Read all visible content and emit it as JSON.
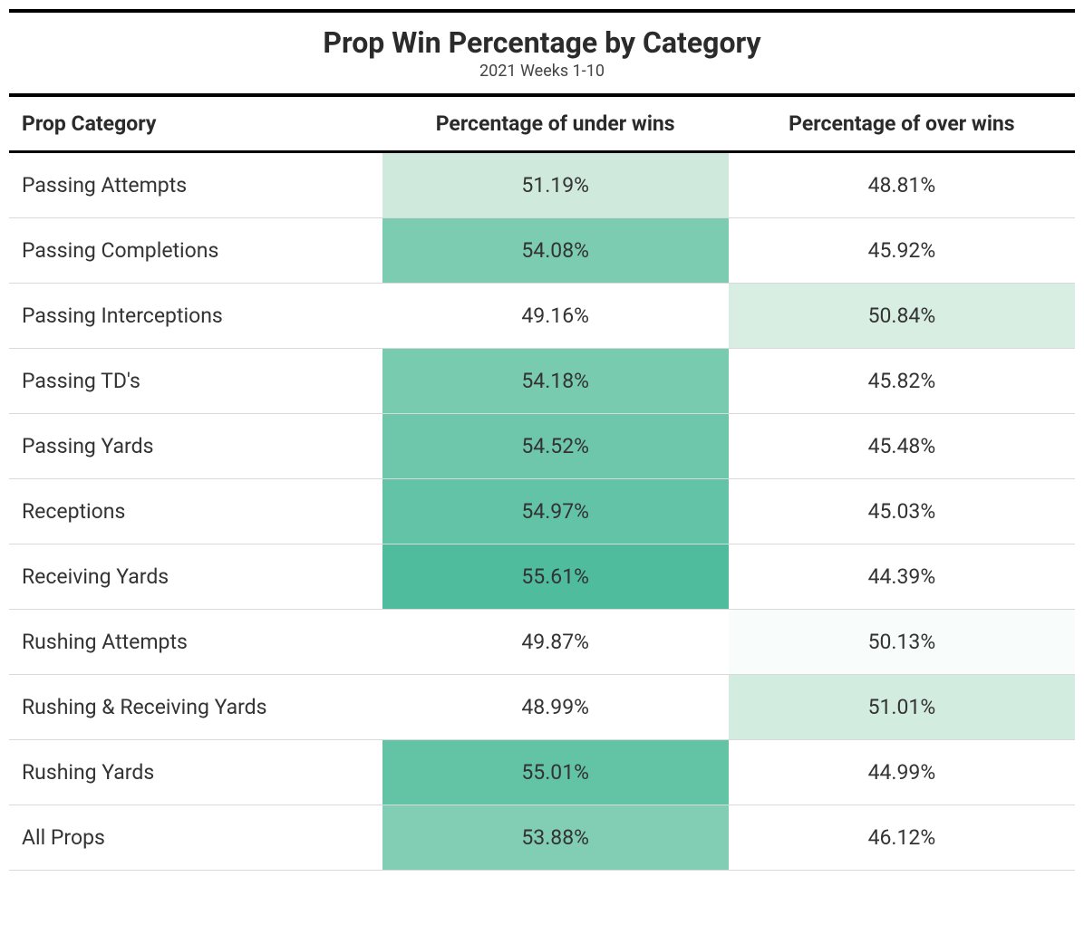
{
  "title": "Prop Win Percentage by Category",
  "subtitle": "2021 Weeks 1-10",
  "columns": {
    "category": "Prop Category",
    "under": "Percentage of under wins",
    "over": "Percentage of over wins"
  },
  "colors": {
    "border": "#000000",
    "row_divider": "#d9d9d9",
    "text": "#333333",
    "background": "#ffffff"
  },
  "typography": {
    "title_fontsize": 32,
    "subtitle_fontsize": 18,
    "header_fontsize": 23,
    "cell_fontsize": 23,
    "title_weight": 700,
    "header_weight": 700
  },
  "rows": [
    {
      "category": "Passing Attempts",
      "under": "51.19%",
      "over": "48.81%",
      "under_bg": "#cfeadd",
      "over_bg": "#ffffff"
    },
    {
      "category": "Passing Completions",
      "under": "54.08%",
      "over": "45.92%",
      "under_bg": "#7cccb1",
      "over_bg": "#ffffff"
    },
    {
      "category": "Passing Interceptions",
      "under": "49.16%",
      "over": "50.84%",
      "under_bg": "#ffffff",
      "over_bg": "#d8eee3"
    },
    {
      "category": "Passing TD's",
      "under": "54.18%",
      "over": "45.82%",
      "under_bg": "#79cbaf",
      "over_bg": "#ffffff"
    },
    {
      "category": "Passing Yards",
      "under": "54.52%",
      "over": "45.48%",
      "under_bg": "#6fc7ab",
      "over_bg": "#ffffff"
    },
    {
      "category": "Receptions",
      "under": "54.97%",
      "over": "45.03%",
      "under_bg": "#63c3a6",
      "over_bg": "#ffffff"
    },
    {
      "category": "Receiving Yards",
      "under": "55.61%",
      "over": "44.39%",
      "under_bg": "#4fbc9d",
      "over_bg": "#ffffff"
    },
    {
      "category": "Rushing Attempts",
      "under": "49.87%",
      "over": "50.13%",
      "under_bg": "#ffffff",
      "over_bg": "#f8fcfa"
    },
    {
      "category": "Rushing & Receiving Yards",
      "under": "48.99%",
      "over": "51.01%",
      "under_bg": "#ffffff",
      "over_bg": "#d3ece0"
    },
    {
      "category": "Rushing Yards",
      "under": "55.01%",
      "over": "44.99%",
      "under_bg": "#62c3a5",
      "over_bg": "#ffffff"
    },
    {
      "category": "All Props",
      "under": "53.88%",
      "over": "46.12%",
      "under_bg": "#82ceb4",
      "over_bg": "#ffffff"
    }
  ]
}
